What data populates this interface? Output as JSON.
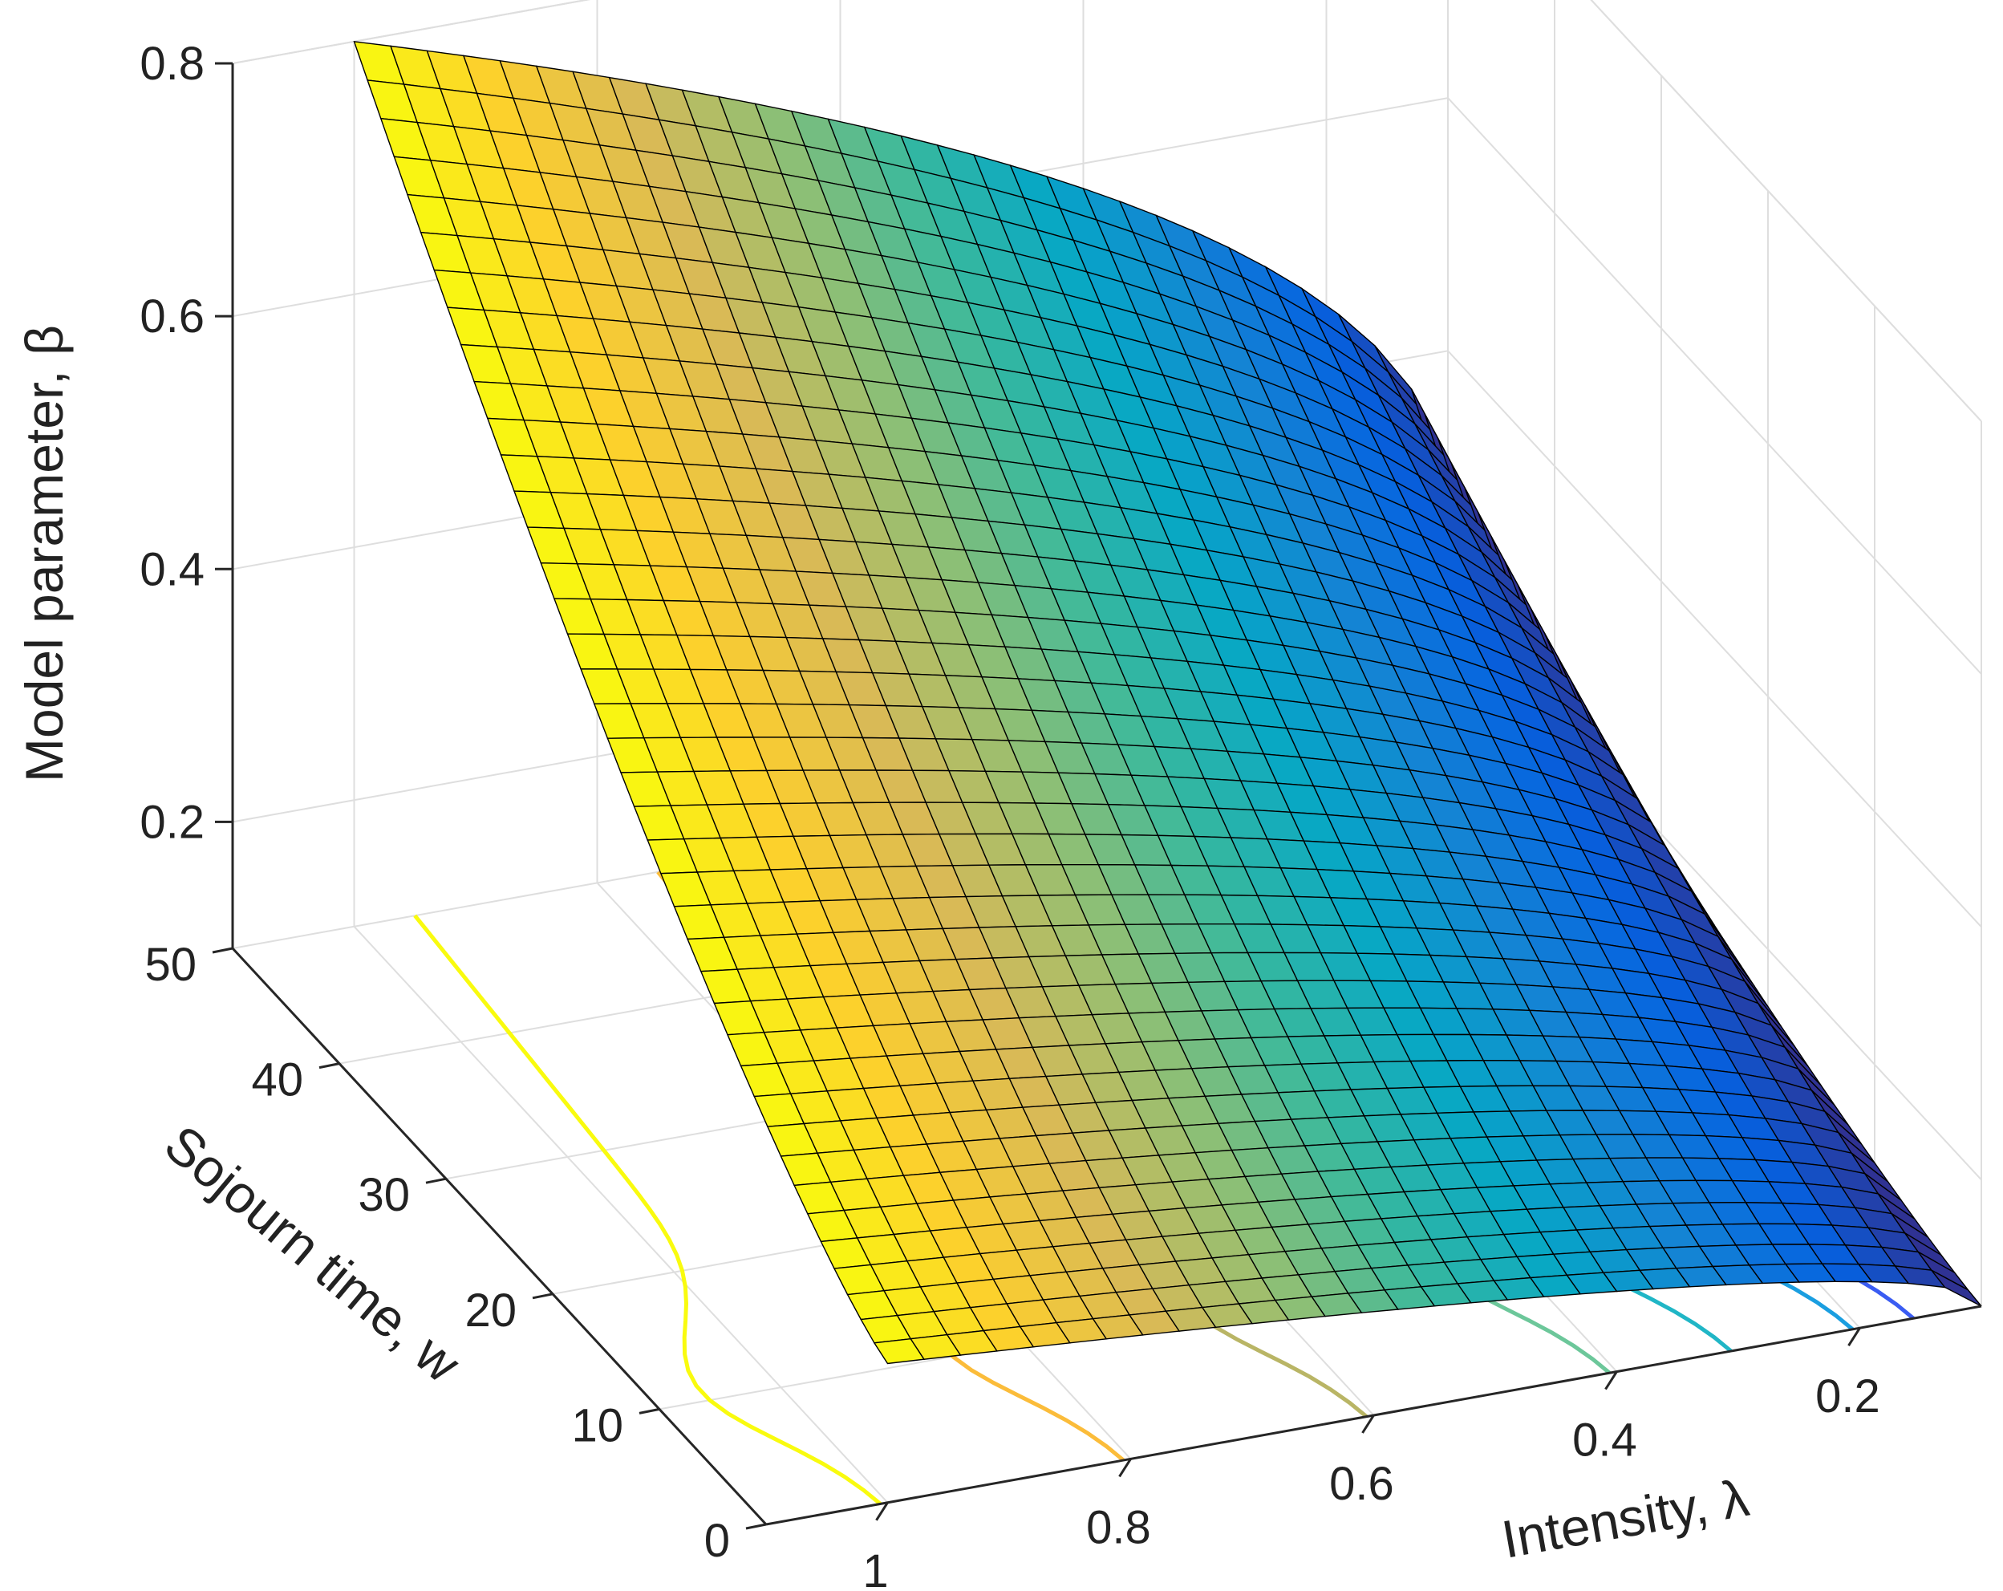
{
  "chart_data": {
    "type": "surface3d",
    "title": "",
    "xlabel": "Intensity, λ",
    "ylabel": "Sojourn time, w",
    "zlabel": "Model parameter, β",
    "x_ticks": [
      "1",
      "0.8",
      "0.6",
      "0.4",
      "0.2"
    ],
    "y_ticks": [
      "0",
      "10",
      "20",
      "30",
      "40",
      "50"
    ],
    "z_ticks": [
      "0.2",
      "0.4",
      "0.6",
      "0.8"
    ],
    "xlim": [
      0.1,
      1.1
    ],
    "ylim": [
      0,
      50
    ],
    "zlim": [
      0.1,
      0.8
    ],
    "x_direction": "reversed",
    "grid": true,
    "legend": "none",
    "colormap": "parula",
    "surface_edge_color": "#000000",
    "contour_levels": [
      {
        "lambda": 1.0,
        "color": "#f9fb0e"
      },
      {
        "lambda": 0.8,
        "color": "#fbbc3a"
      },
      {
        "lambda": 0.6,
        "color": "#b9b565"
      },
      {
        "lambda": 0.4,
        "color": "#6cc79a"
      },
      {
        "lambda": 0.3,
        "color": "#20b6c6"
      },
      {
        "lambda": 0.2,
        "color": "#1a9ee0"
      },
      {
        "lambda": 0.15,
        "color": "#3a5cf2"
      }
    ],
    "surface_samples": [
      {
        "lambda": 1.0,
        "w": 0,
        "beta": 0.21
      },
      {
        "lambda": 1.0,
        "w": 20,
        "beta": 0.45
      },
      {
        "lambda": 1.0,
        "w": 50,
        "beta": 0.8
      },
      {
        "lambda": 0.6,
        "w": 0,
        "beta": 0.21
      },
      {
        "lambda": 0.6,
        "w": 50,
        "beta": 0.67
      },
      {
        "lambda": 0.2,
        "w": 0,
        "beta": 0.15
      },
      {
        "lambda": 0.2,
        "w": 50,
        "beta": 0.46
      },
      {
        "lambda": 0.1,
        "w": 0,
        "beta": 0.1
      },
      {
        "lambda": 0.1,
        "w": 50,
        "beta": 0.3
      }
    ]
  }
}
